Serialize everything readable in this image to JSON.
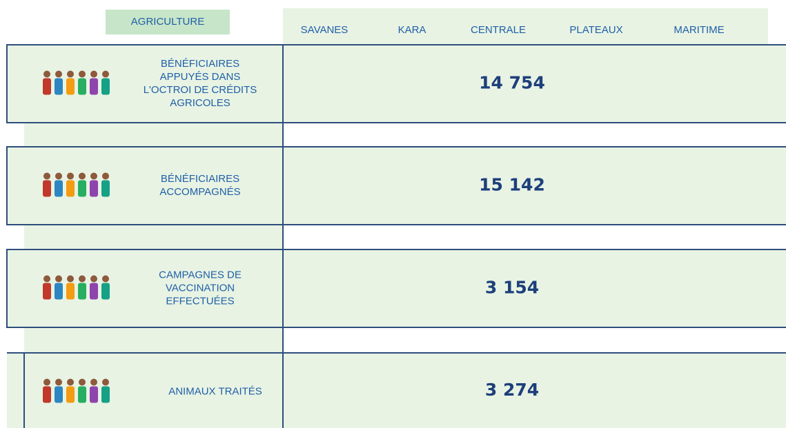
{
  "header": {
    "title": "AGRICULTURE",
    "regions": [
      "SAVANES",
      "KARA",
      "CENTRALE",
      "PLATEAUX",
      "MARITIME"
    ]
  },
  "rows": [
    {
      "label_lines": [
        "BÉNÉFICIAIRES",
        "APPUYÉS DANS",
        "L'OCTROI DE CRÉDITS",
        "AGRICOLES"
      ],
      "value": "14 754"
    },
    {
      "label_lines": [
        "BÉNÉFICIAIRES",
        "ACCOMPAGNÉS"
      ],
      "value": "15 142"
    },
    {
      "label_lines": [
        "CAMPAGNES DE",
        "VACCINATION",
        "EFFECTUÉES"
      ],
      "value": "3 154"
    },
    {
      "label_lines": [
        "ANIMAUX TRAITÉS"
      ],
      "value": "3 274"
    }
  ]
}
